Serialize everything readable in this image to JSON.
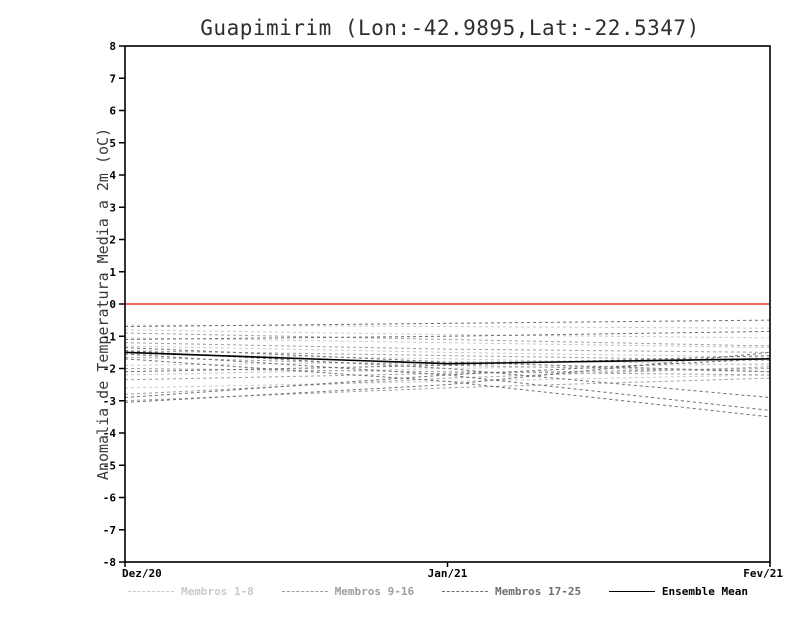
{
  "chart_data": {
    "type": "line",
    "title": "Guapimirim (Lon:-42.9895,Lat:-22.5347)",
    "xlabel": "",
    "ylabel": "Anomalia de Temperatura Media a 2m (oC)",
    "x_ticks": [
      "Dez/20",
      "Jan/21",
      "Fev/21"
    ],
    "ylim": [
      -8,
      8
    ],
    "y_ticks": [
      8,
      7,
      6,
      5,
      4,
      3,
      2,
      1,
      0,
      -1,
      -2,
      -3,
      -4,
      -5,
      -6,
      -7,
      -8
    ],
    "grid": false,
    "zero_line": {
      "value": 0,
      "color": "#e6382c"
    },
    "frame_color": "#000000",
    "legend_position": "bottom",
    "series": [
      {
        "name": "Membros 1-8",
        "color": "#c9c9c9",
        "style": "dashed",
        "members": [
          [
            -0.65,
            -0.7,
            -0.75
          ],
          [
            -0.8,
            -0.95,
            -1.05
          ],
          [
            -1.05,
            -1.2,
            -1.35
          ],
          [
            -1.3,
            -1.5,
            -1.65
          ],
          [
            -1.55,
            -1.7,
            -1.9
          ],
          [
            -1.9,
            -1.8,
            -1.7
          ],
          [
            -2.2,
            -2.0,
            -1.85
          ],
          [
            -2.6,
            -2.4,
            -2.2
          ]
        ]
      },
      {
        "name": "Membros 9-16",
        "color": "#9e9e9e",
        "style": "dashed",
        "members": [
          [
            -0.9,
            -1.1,
            -1.3
          ],
          [
            -1.2,
            -1.4,
            -1.5
          ],
          [
            -1.45,
            -1.6,
            -1.75
          ],
          [
            -1.65,
            -1.9,
            -2.1
          ],
          [
            -2.0,
            -2.1,
            -2.2
          ],
          [
            -2.35,
            -2.15,
            -2.0
          ],
          [
            -2.8,
            -2.3,
            -1.95
          ],
          [
            -3.0,
            -2.6,
            -2.3
          ]
        ]
      },
      {
        "name": "Membros 17-25",
        "color": "#6f6f6f",
        "style": "dashed",
        "members": [
          [
            -0.7,
            -0.6,
            -0.5
          ],
          [
            -1.1,
            -1.0,
            -0.85
          ],
          [
            -1.35,
            -1.8,
            -2.1
          ],
          [
            -1.45,
            -2.0,
            -2.9
          ],
          [
            -1.55,
            -2.2,
            -3.3
          ],
          [
            -1.7,
            -2.4,
            -3.5
          ],
          [
            -2.1,
            -1.9,
            -1.6
          ],
          [
            -2.9,
            -2.2,
            -1.7
          ],
          [
            -3.05,
            -2.5,
            -1.5
          ]
        ]
      },
      {
        "name": "Ensemble Mean",
        "color": "#000000",
        "style": "solid",
        "members": [
          [
            -1.5,
            -1.85,
            -1.7
          ]
        ]
      }
    ]
  }
}
